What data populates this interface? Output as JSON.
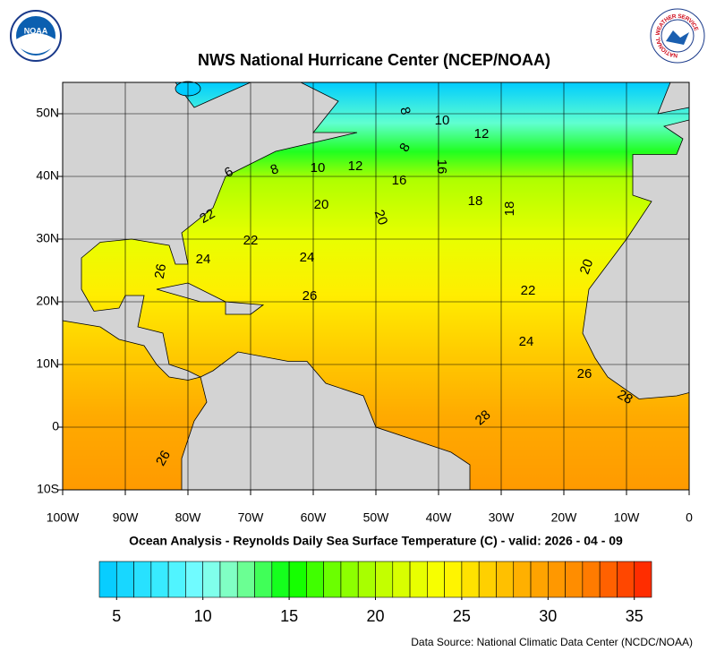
{
  "logos": {
    "left": "NOAA",
    "right": "NATIONAL WEATHER SERVICE"
  },
  "map": {
    "title": "NWS National Hurricane Center (NCEP/NOAA)",
    "subtitle": "Ocean Analysis - Reynolds Daily Sea Surface Temperature (C) - valid: 2026 - 04 - 09",
    "source": "Data Source: National Climatic Data Center (NCDC/NOAA)",
    "lonlim": [
      -100,
      0
    ],
    "latlim": [
      -10,
      55
    ],
    "lon_ticks": [
      {
        "value": -100,
        "label": "100W"
      },
      {
        "value": -90,
        "label": "90W"
      },
      {
        "value": -80,
        "label": "80W"
      },
      {
        "value": -70,
        "label": "70W"
      },
      {
        "value": -60,
        "label": "60W"
      },
      {
        "value": -50,
        "label": "50W"
      },
      {
        "value": -40,
        "label": "40W"
      },
      {
        "value": -30,
        "label": "30W"
      },
      {
        "value": -20,
        "label": "20W"
      },
      {
        "value": -10,
        "label": "10W"
      },
      0
    ],
    "lat_ticks": [
      {
        "value": -10,
        "label": "10S"
      },
      0,
      {
        "value": 10,
        "label": "10N"
      },
      {
        "value": 20,
        "label": "20N"
      },
      {
        "value": 30,
        "label": "30N"
      },
      {
        "value": 40,
        "label": "40N"
      },
      {
        "value": 50,
        "label": "50N"
      }
    ],
    "grid": true,
    "contour_labels": [
      8,
      10,
      12,
      8,
      16,
      12,
      10,
      8,
      6,
      16,
      18,
      18,
      20,
      20,
      22,
      22,
      24,
      24,
      26,
      26,
      22,
      20,
      24,
      26,
      28,
      28,
      26
    ]
  },
  "colorbar": {
    "lim": [
      4,
      36
    ],
    "ticks": [
      5,
      10,
      15,
      20,
      25,
      30,
      35
    ],
    "color_stops": [
      {
        "value": 4,
        "color": "#00c8ff"
      },
      {
        "value": 8,
        "color": "#40f0ff"
      },
      {
        "value": 10,
        "color": "#80ffff"
      },
      {
        "value": 12,
        "color": "#80ffb0"
      },
      {
        "value": 15,
        "color": "#00ff00"
      },
      {
        "value": 18,
        "color": "#80ff00"
      },
      {
        "value": 21,
        "color": "#d0ff00"
      },
      {
        "value": 24,
        "color": "#ffff00"
      },
      {
        "value": 26,
        "color": "#ffd800"
      },
      {
        "value": 29,
        "color": "#ffa800"
      },
      {
        "value": 32,
        "color": "#ff8800"
      },
      {
        "value": 36,
        "color": "#ff2000"
      }
    ]
  }
}
